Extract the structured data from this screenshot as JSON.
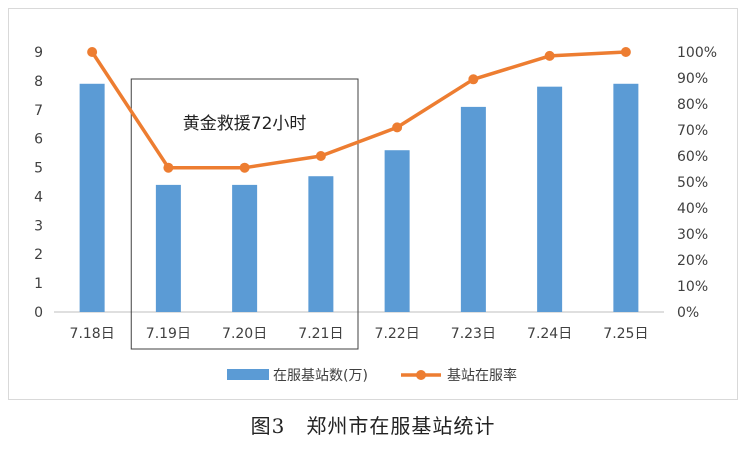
{
  "chart_data": {
    "type": "bar+line",
    "categories": [
      "7.18日",
      "7.19日",
      "7.20日",
      "7.21日",
      "7.22日",
      "7.23日",
      "7.24日",
      "7.25日"
    ],
    "series": [
      {
        "name": "在服基站数(万)",
        "type": "bar",
        "axis": "left",
        "color": "#5b9bd5",
        "values": [
          7.9,
          4.4,
          4.4,
          4.7,
          5.6,
          7.1,
          7.8,
          7.9
        ]
      },
      {
        "name": "基站在服率",
        "type": "line",
        "axis": "right",
        "color": "#ed7d31",
        "values": [
          100,
          55.5,
          55.5,
          60,
          71,
          89.5,
          98.5,
          100
        ]
      }
    ],
    "y_left": {
      "ticks": [
        "0",
        "1",
        "2",
        "3",
        "4",
        "5",
        "6",
        "7",
        "8",
        "9"
      ],
      "ylim": [
        0,
        9
      ]
    },
    "y_right": {
      "ticks": [
        "0%",
        "10%",
        "20%",
        "30%",
        "40%",
        "50%",
        "60%",
        "70%",
        "80%",
        "90%",
        "100%"
      ],
      "ylim": [
        0,
        100
      ]
    },
    "annotation": {
      "text": "黄金救援72小时",
      "span": [
        "7.19日",
        "7.21日"
      ]
    },
    "legend_position": "bottom",
    "grid": false
  },
  "caption": "图3　郑州市在服基站统计"
}
